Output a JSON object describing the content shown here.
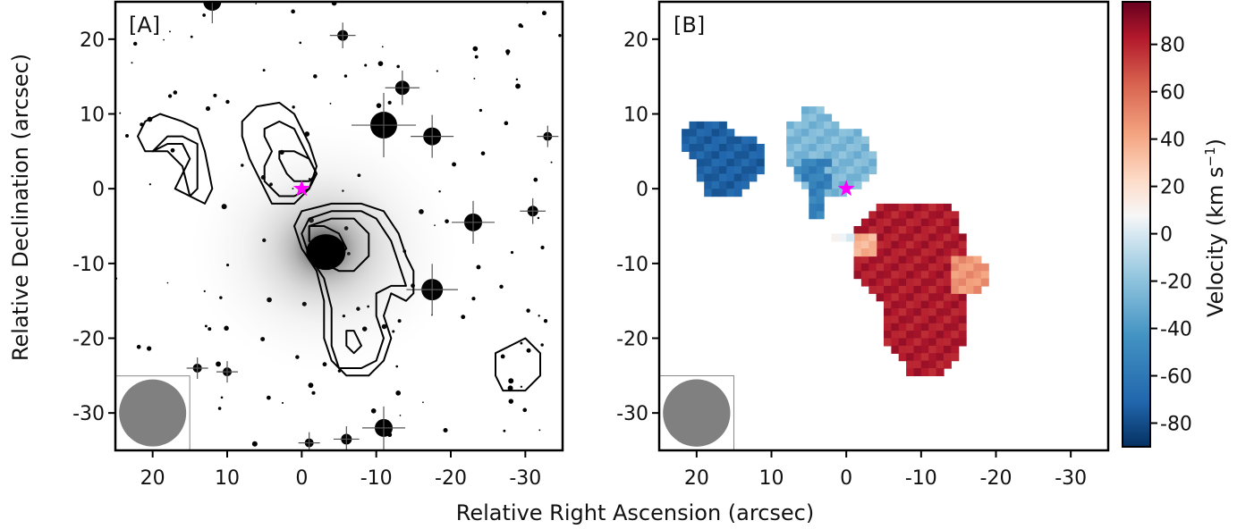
{
  "figure": {
    "xlabel": "Relative Right Ascension (arcsec)",
    "ylabel": "Relative Declination (arcsec)",
    "colorbar_label_main": "Velocity (km s",
    "colorbar_label_sup": "−1",
    "colorbar_label_close": ")"
  },
  "chart_data": [
    {
      "type": "heatmap",
      "panel_label": "[A]",
      "description_kind": "greyscale optical image with HI contours",
      "xlim": [
        25,
        -35
      ],
      "ylim": [
        -35,
        25
      ],
      "x_ticks": [
        20,
        10,
        0,
        -10,
        -20,
        -30
      ],
      "x_tick_labels": [
        "20",
        "10",
        "0",
        "-10",
        "-20",
        "-30"
      ],
      "y_ticks": [
        20,
        10,
        0,
        -10,
        -20,
        -30
      ],
      "y_tick_labels": [
        "20",
        "10",
        "0",
        "-10",
        "-20",
        "-30"
      ],
      "marker": {
        "shape": "star",
        "color": "#ff00ff",
        "x": 0,
        "y": 0
      },
      "beam": {
        "color": "#808080",
        "x": 20,
        "y": -30,
        "diameter_arcsec": 9
      },
      "galaxy_core": {
        "x": -3,
        "y": -8
      },
      "contours": [
        [
          [
            22,
            7
          ],
          [
            21,
            9
          ],
          [
            19,
            10
          ],
          [
            16,
            9
          ],
          [
            14,
            8
          ],
          [
            13,
            5
          ],
          [
            12,
            0
          ],
          [
            13,
            -2
          ],
          [
            15,
            -1
          ],
          [
            16,
            3
          ],
          [
            18,
            5
          ],
          [
            20,
            5
          ],
          [
            21,
            5
          ]
        ],
        [
          [
            20,
            5
          ],
          [
            18,
            6
          ],
          [
            16,
            6
          ],
          [
            15,
            4
          ],
          [
            16,
            2
          ],
          [
            17,
            0
          ],
          [
            15,
            -1
          ],
          [
            14,
            0
          ],
          [
            14,
            3
          ],
          [
            14,
            6
          ],
          [
            16,
            7
          ],
          [
            18,
            7
          ]
        ],
        [
          [
            8,
            9
          ],
          [
            6,
            11
          ],
          [
            3,
            11.5
          ],
          [
            1,
            10
          ],
          [
            0,
            8
          ],
          [
            -1,
            6
          ],
          [
            -2,
            3
          ],
          [
            -1,
            0
          ],
          [
            1,
            -2
          ],
          [
            3,
            -2
          ],
          [
            4,
            -2
          ],
          [
            5,
            0
          ],
          [
            6,
            2
          ],
          [
            7,
            4
          ],
          [
            8,
            7
          ]
        ],
        [
          [
            5,
            8
          ],
          [
            3,
            9
          ],
          [
            1,
            8
          ],
          [
            0,
            6
          ],
          [
            -1,
            4
          ],
          [
            -2,
            2
          ],
          [
            -1,
            0
          ],
          [
            1,
            -1
          ],
          [
            3,
            -1
          ],
          [
            5,
            1
          ],
          [
            5,
            3
          ],
          [
            4,
            5
          ],
          [
            5,
            7
          ]
        ],
        [
          [
            3,
            5
          ],
          [
            1,
            5
          ],
          [
            -1,
            4
          ],
          [
            -2,
            2
          ],
          [
            -1,
            1
          ],
          [
            1,
            1
          ],
          [
            2,
            2
          ],
          [
            3,
            4
          ]
        ],
        [
          [
            0,
            -3
          ],
          [
            -4,
            -2
          ],
          [
            -8,
            -2
          ],
          [
            -11,
            -3
          ],
          [
            -13,
            -6
          ],
          [
            -14,
            -9
          ],
          [
            -15,
            -11
          ],
          [
            -15,
            -14
          ],
          [
            -14,
            -15
          ],
          [
            -12,
            -14
          ],
          [
            -11,
            -17
          ],
          [
            -12,
            -20
          ],
          [
            -11,
            -23
          ],
          [
            -9,
            -25
          ],
          [
            -6,
            -25
          ],
          [
            -4,
            -23
          ],
          [
            -3,
            -20
          ],
          [
            -3,
            -15
          ],
          [
            -2,
            -11
          ],
          [
            0,
            -8
          ],
          [
            1,
            -5
          ]
        ],
        [
          [
            -1,
            -4
          ],
          [
            -4,
            -3
          ],
          [
            -8,
            -3
          ],
          [
            -10,
            -4
          ],
          [
            -12,
            -7
          ],
          [
            -13,
            -10
          ],
          [
            -14,
            -13
          ],
          [
            -12,
            -13
          ],
          [
            -10,
            -14
          ],
          [
            -10,
            -17
          ],
          [
            -11,
            -20
          ],
          [
            -10,
            -23
          ],
          [
            -8,
            -24
          ],
          [
            -5,
            -24
          ],
          [
            -4,
            -21
          ],
          [
            -4,
            -16
          ],
          [
            -3,
            -12
          ],
          [
            -1,
            -9
          ],
          [
            0,
            -6
          ]
        ],
        [
          [
            -1,
            -5
          ],
          [
            -4,
            -4
          ],
          [
            -7,
            -4
          ],
          [
            -9,
            -6
          ],
          [
            -9,
            -9
          ],
          [
            -7,
            -11
          ],
          [
            -5,
            -11
          ],
          [
            -3,
            -10
          ],
          [
            -2,
            -8
          ],
          [
            -1,
            -7
          ]
        ],
        [
          [
            -1,
            -5
          ],
          [
            -3,
            -5
          ],
          [
            -5,
            -6
          ],
          [
            -6,
            -8
          ],
          [
            -5,
            -9
          ],
          [
            -3,
            -9
          ],
          [
            -2,
            -8
          ],
          [
            -1,
            -7
          ]
        ],
        [
          [
            -6,
            -19
          ],
          [
            -7,
            -19
          ],
          [
            -8,
            -21
          ],
          [
            -7,
            -22
          ],
          [
            -6,
            -21
          ]
        ],
        [
          [
            -26,
            -22
          ],
          [
            -28,
            -21
          ],
          [
            -30,
            -20
          ],
          [
            -31,
            -21
          ],
          [
            -32,
            -22
          ],
          [
            -32,
            -25
          ],
          [
            -30,
            -27
          ],
          [
            -27,
            -27
          ],
          [
            -26,
            -25
          ]
        ]
      ]
    },
    {
      "type": "heatmap",
      "panel_label": "[B]",
      "description_kind": "HI velocity field",
      "xlim": [
        25,
        -35
      ],
      "ylim": [
        -35,
        25
      ],
      "x_ticks": [
        20,
        10,
        0,
        -10,
        -20,
        -30
      ],
      "x_tick_labels": [
        "20",
        "10",
        "0",
        "-10",
        "-20",
        "-30"
      ],
      "y_ticks": [
        20,
        10,
        0,
        -10,
        -20,
        -30
      ],
      "y_tick_labels": [
        "20",
        "10",
        "0",
        "-10",
        "-20",
        "-30"
      ],
      "marker": {
        "shape": "star",
        "color": "#ff00ff",
        "x": 0,
        "y": 0
      },
      "beam": {
        "color": "#808080",
        "x": 20,
        "y": -30,
        "diameter_arcsec": 9
      },
      "colormap": "RdBu_r",
      "colorbar": {
        "vmin": -90,
        "vmax": 98,
        "ticks": [
          80,
          60,
          40,
          20,
          0,
          -20,
          -40,
          -60,
          -80
        ],
        "tick_labels": [
          "80",
          "60",
          "40",
          "20",
          "0",
          "-20",
          "-40",
          "-60",
          "-80"
        ]
      },
      "pixel_size_arcsec": 1,
      "regions": [
        {
          "velocity": -72,
          "x_range": [
            11,
            22
          ],
          "rows": [
            [
              9,
              21,
              17
            ],
            [
              8,
              22,
              16
            ],
            [
              7,
              22,
              13
            ],
            [
              6,
              22,
              12
            ],
            [
              5,
              21,
              12
            ],
            [
              4,
              20,
              12
            ],
            [
              3,
              20,
              12
            ],
            [
              2,
              20,
              13
            ],
            [
              1,
              19,
              14
            ],
            [
              0,
              19,
              15
            ]
          ]
        },
        {
          "velocity": -28,
          "x_range": [
            -3,
            9
          ],
          "rows": [
            [
              11,
              6,
              4
            ],
            [
              10,
              6,
              3
            ],
            [
              9,
              8,
              2
            ],
            [
              8,
              8,
              -1
            ],
            [
              7,
              8,
              -2
            ],
            [
              6,
              8,
              -2
            ],
            [
              5,
              8,
              -3
            ],
            [
              4,
              8,
              -3
            ],
            [
              3,
              7,
              -3
            ],
            [
              2,
              7,
              -2
            ],
            [
              1,
              6,
              -1
            ],
            [
              0,
              5,
              1
            ]
          ]
        },
        {
          "velocity": -55,
          "x_range": [
            3,
            7
          ],
          "rows": [
            [
              4,
              6,
              3
            ],
            [
              3,
              7,
              4
            ],
            [
              2,
              6,
              3
            ],
            [
              1,
              5,
              3
            ],
            [
              0,
              5,
              4
            ],
            [
              -1,
              5,
              4
            ],
            [
              -2,
              5,
              4
            ],
            [
              -3,
              5,
              4
            ]
          ]
        },
        {
          "velocity": 82,
          "x_range": [
            -15,
            -1
          ],
          "rows": [
            [
              -2,
              -4,
              -13
            ],
            [
              -3,
              -3,
              -14
            ],
            [
              -4,
              -2,
              -14
            ],
            [
              -5,
              -1,
              -14
            ],
            [
              -6,
              -1,
              -15
            ],
            [
              -7,
              -1,
              -15
            ],
            [
              -8,
              -1,
              -15
            ],
            [
              -9,
              -1,
              -15
            ],
            [
              -10,
              -1,
              -15
            ],
            [
              -11,
              -1,
              -15
            ],
            [
              -12,
              -2,
              -15
            ],
            [
              -13,
              -3,
              -15
            ],
            [
              -14,
              -4,
              -15
            ],
            [
              -15,
              -5,
              -15
            ],
            [
              -16,
              -5,
              -15
            ],
            [
              -17,
              -5,
              -15
            ],
            [
              -18,
              -5,
              -15
            ],
            [
              -19,
              -5,
              -15
            ],
            [
              -20,
              -5,
              -15
            ],
            [
              -21,
              -6,
              -14
            ],
            [
              -22,
              -7,
              -14
            ],
            [
              -23,
              -8,
              -13
            ],
            [
              -24,
              -8,
              -12
            ]
          ]
        },
        {
          "velocity": 45,
          "x_range": [
            -18,
            -14
          ],
          "rows": [
            [
              -9,
              -14,
              -17
            ],
            [
              -10,
              -14,
              -18
            ],
            [
              -11,
              -14,
              -18
            ],
            [
              -12,
              -14,
              -18
            ],
            [
              -13,
              -14,
              -17
            ]
          ]
        },
        {
          "velocity": 35,
          "x_range": [
            -3,
            -1
          ],
          "rows": [
            [
              -6,
              -1,
              -3
            ],
            [
              -7,
              -1,
              -3
            ],
            [
              -8,
              -1,
              -3
            ]
          ]
        },
        {
          "velocity": 2,
          "x_range": [
            1,
            2
          ],
          "rows": [
            [
              -6,
              2,
              0
            ]
          ]
        }
      ]
    }
  ]
}
